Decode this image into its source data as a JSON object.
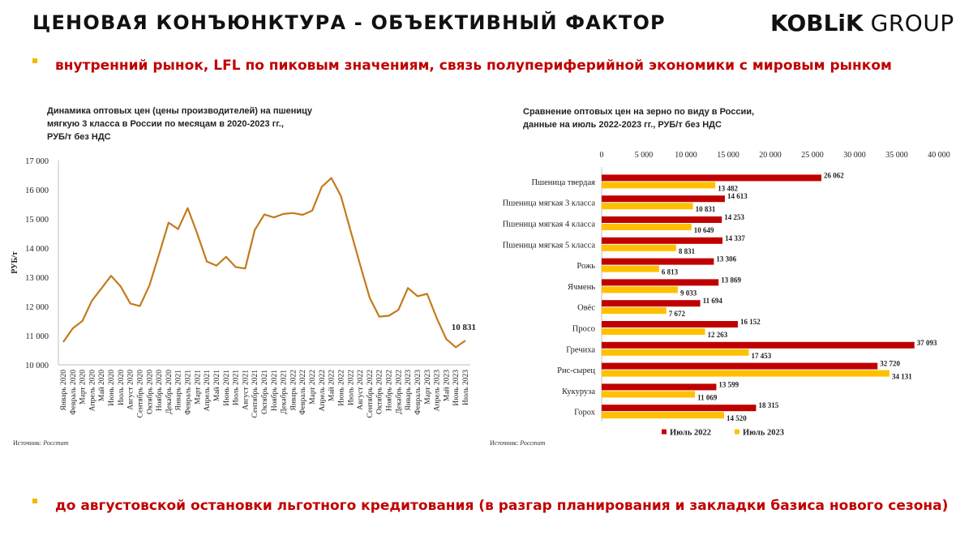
{
  "header": {
    "title": "ЦЕНОВАЯ КОНЪЮНКТУРА - ОБЪЕКТИВНЫЙ ФАКТОР",
    "logo_bold": "KOBLiK",
    "logo_thin": "GROUP"
  },
  "bullets": [
    "внутренний рынок, LFL по пиковым значениям, связь полупериферийной экономики с мировым рынком",
    "до августовской остановки льготного кредитования (в разгар планирования и закладки базиса нового сезона)"
  ],
  "colors": {
    "accent_red": "#c00000",
    "bullet_yellow": "#f2b705",
    "line": "#c47a1c",
    "bar_2022": "#c00000",
    "bar_2023": "#ffc000"
  },
  "chart_data": [
    {
      "type": "line",
      "title": "Динамика оптовых цен (цены производителей) на пшеницу\nмягкую 3 класса в России по месяцам в 2020-2023 гг.,\nРУБ/т без НДС",
      "ylabel": "РУБ/т",
      "ylim": [
        10000,
        17000
      ],
      "yticks": [
        "10 000",
        "11 000",
        "12 000",
        "13 000",
        "14 000",
        "15 000",
        "16 000",
        "17 000"
      ],
      "x": [
        "Январь 2020",
        "Февраль 2020",
        "Март 2020",
        "Апрель 2020",
        "Май 2020",
        "Июнь 2020",
        "Июль 2020",
        "Август 2020",
        "Сентябрь 2020",
        "Октябрь 2020",
        "Ноябрь 2020",
        "Декабрь 2020",
        "Январь 2021",
        "Февраль 2021",
        "Март 2021",
        "Апрель 2021",
        "Май 2021",
        "Июнь 2021",
        "Июль 2021",
        "Август 2021",
        "Сентябрь 2021",
        "Октябрь 2021",
        "Ноябрь 2021",
        "Декабрь 2021",
        "Январь 2022",
        "Февраль 2022",
        "Март 2022",
        "Апрель 2022",
        "Май 2022",
        "Июнь 2022",
        "Июль 2022",
        "Август 2022",
        "Сентябрь 2022",
        "Октябрь 2022",
        "Ноябрь 2022",
        "Декабрь 2022",
        "Январь 2023",
        "Февраль 2023",
        "Март 2023",
        "Апрель 2023",
        "Май 2023",
        "Июнь 2023",
        "Июль 2023"
      ],
      "values": [
        10780,
        11250,
        11500,
        12200,
        12620,
        13050,
        12680,
        12100,
        12010,
        12720,
        13780,
        14870,
        14650,
        15370,
        14490,
        13540,
        13400,
        13700,
        13350,
        13300,
        14620,
        15150,
        15050,
        15170,
        15200,
        15140,
        15280,
        16100,
        16400,
        15780,
        14600,
        13430,
        12300,
        11650,
        11680,
        11880,
        12630,
        12350,
        12430,
        11600,
        10880,
        10600,
        10831
      ],
      "last_label": "10 831",
      "source_label": "Источник:",
      "source_name": "Росстат"
    },
    {
      "type": "bar",
      "orientation": "horizontal",
      "title": "Сравнение оптовых цен на зерно по виду в России,\nданные на июль 2022-2023 гг., РУБ/т без НДС",
      "xlim": [
        0,
        40000
      ],
      "xticks": [
        "0",
        "5 000",
        "10 000",
        "15 000",
        "20 000",
        "25 000",
        "30 000",
        "35 000",
        "40 000"
      ],
      "categories": [
        "Пшеница твердая",
        "Пшеница мягкая 3 класса",
        "Пшеница мягкая 4 класса",
        "Пшеница мягкая 5 класса",
        "Рожь",
        "Ячмень",
        "Овёс",
        "Просо",
        "Гречиха",
        "Рис-сырец",
        "Кукуруза",
        "Горох"
      ],
      "series": [
        {
          "name": "Июль 2022",
          "values": [
            26062,
            14613,
            14253,
            14337,
            13306,
            13869,
            11694,
            16152,
            37093,
            32720,
            13599,
            18315
          ],
          "labels": [
            "26 062",
            "14 613",
            "14 253",
            "14 337",
            "13 306",
            "13 869",
            "11 694",
            "16 152",
            "37 093",
            "32 720",
            "13 599",
            "18 315"
          ]
        },
        {
          "name": "Июль 2023",
          "values": [
            13482,
            10831,
            10649,
            8831,
            6813,
            9033,
            7672,
            12263,
            17453,
            34131,
            11069,
            14520
          ],
          "labels": [
            "13 482",
            "10 831",
            "10 649",
            "8 831",
            "6 813",
            "9 033",
            "7 672",
            "12 263",
            "17 453",
            "34 131",
            "11 069",
            "14 520"
          ]
        }
      ],
      "source_label": "Источник:",
      "source_name": "Росстат"
    }
  ]
}
